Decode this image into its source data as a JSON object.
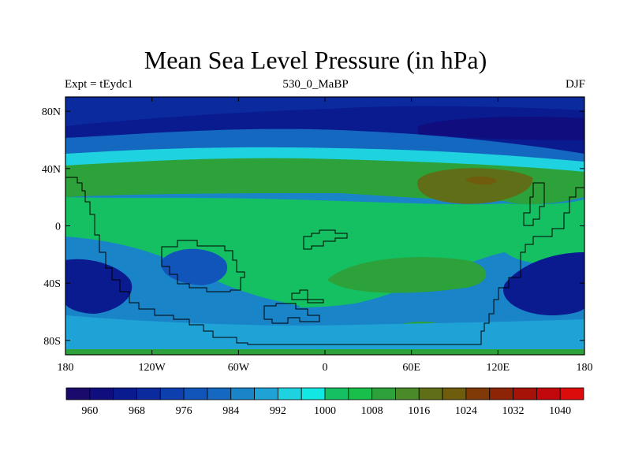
{
  "chart_data": {
    "type": "heatmap",
    "title": "Mean Sea Level Pressure (in hPa)",
    "subtitle_left": "Expt = tEydc1",
    "subtitle_center": "530_0_MaBP",
    "subtitle_right": "DJF",
    "xlim": [
      -180,
      180
    ],
    "ylim": [
      -90,
      90
    ],
    "xticks": [
      {
        "value": -180,
        "label": "180"
      },
      {
        "value": -120,
        "label": "120W"
      },
      {
        "value": -60,
        "label": "60W"
      },
      {
        "value": 0,
        "label": "0"
      },
      {
        "value": 60,
        "label": "60E"
      },
      {
        "value": 120,
        "label": "120E"
      },
      {
        "value": 180,
        "label": "180"
      }
    ],
    "yticks": [
      {
        "value": 80,
        "label": "80N"
      },
      {
        "value": 40,
        "label": "40N"
      },
      {
        "value": 0,
        "label": "0"
      },
      {
        "value": -40,
        "label": "40S"
      },
      {
        "value": -80,
        "label": "80S"
      }
    ],
    "colorbar": {
      "levels": [
        960,
        964,
        968,
        972,
        976,
        980,
        984,
        988,
        992,
        996,
        1000,
        1004,
        1008,
        1012,
        1016,
        1020,
        1024,
        1028,
        1032,
        1036,
        1040
      ],
      "labels": [
        "960",
        "968",
        "976",
        "984",
        "992",
        "1000",
        "1008",
        "1016",
        "1024",
        "1032",
        "1040"
      ],
      "label_levels": [
        960,
        968,
        976,
        984,
        992,
        1000,
        1008,
        1016,
        1024,
        1032,
        1040
      ],
      "colors": [
        "#1a0a6b",
        "#100d7f",
        "#0a1a8f",
        "#0a2a9e",
        "#0d3fae",
        "#1155bb",
        "#1468c0",
        "#1a84c8",
        "#1fa3d6",
        "#1ed2e0",
        "#13e7e3",
        "#14c061",
        "#18bf4a",
        "#2da23a",
        "#4a8a28",
        "#606e17",
        "#6f5c0c",
        "#7f3a08",
        "#8e2406",
        "#a61108",
        "#c3080d",
        "#dc0c0c"
      ]
    },
    "pressure_regions": [
      {
        "name": "north-band",
        "value": 964
      },
      {
        "name": "north-inner",
        "value": 968
      },
      {
        "name": "north-low-east",
        "value": 960
      },
      {
        "name": "north-midlat",
        "value": 980
      },
      {
        "name": "north-subtropics",
        "value": 992
      },
      {
        "name": "subtropical-high-north",
        "value": 1008
      },
      {
        "name": "asian-high",
        "value": 1016
      },
      {
        "name": "asian-high-core",
        "value": 1020
      },
      {
        "name": "tropics",
        "value": 1000
      },
      {
        "name": "southern-midlat",
        "value": 984
      },
      {
        "name": "south-low-west",
        "value": 964
      },
      {
        "name": "south-low-east",
        "value": 964
      },
      {
        "name": "south-high-central",
        "value": 1008
      },
      {
        "name": "south-high-south",
        "value": 1008
      },
      {
        "name": "antarctic-band",
        "value": 988
      },
      {
        "name": "polar-edge",
        "value": 1008
      }
    ]
  }
}
